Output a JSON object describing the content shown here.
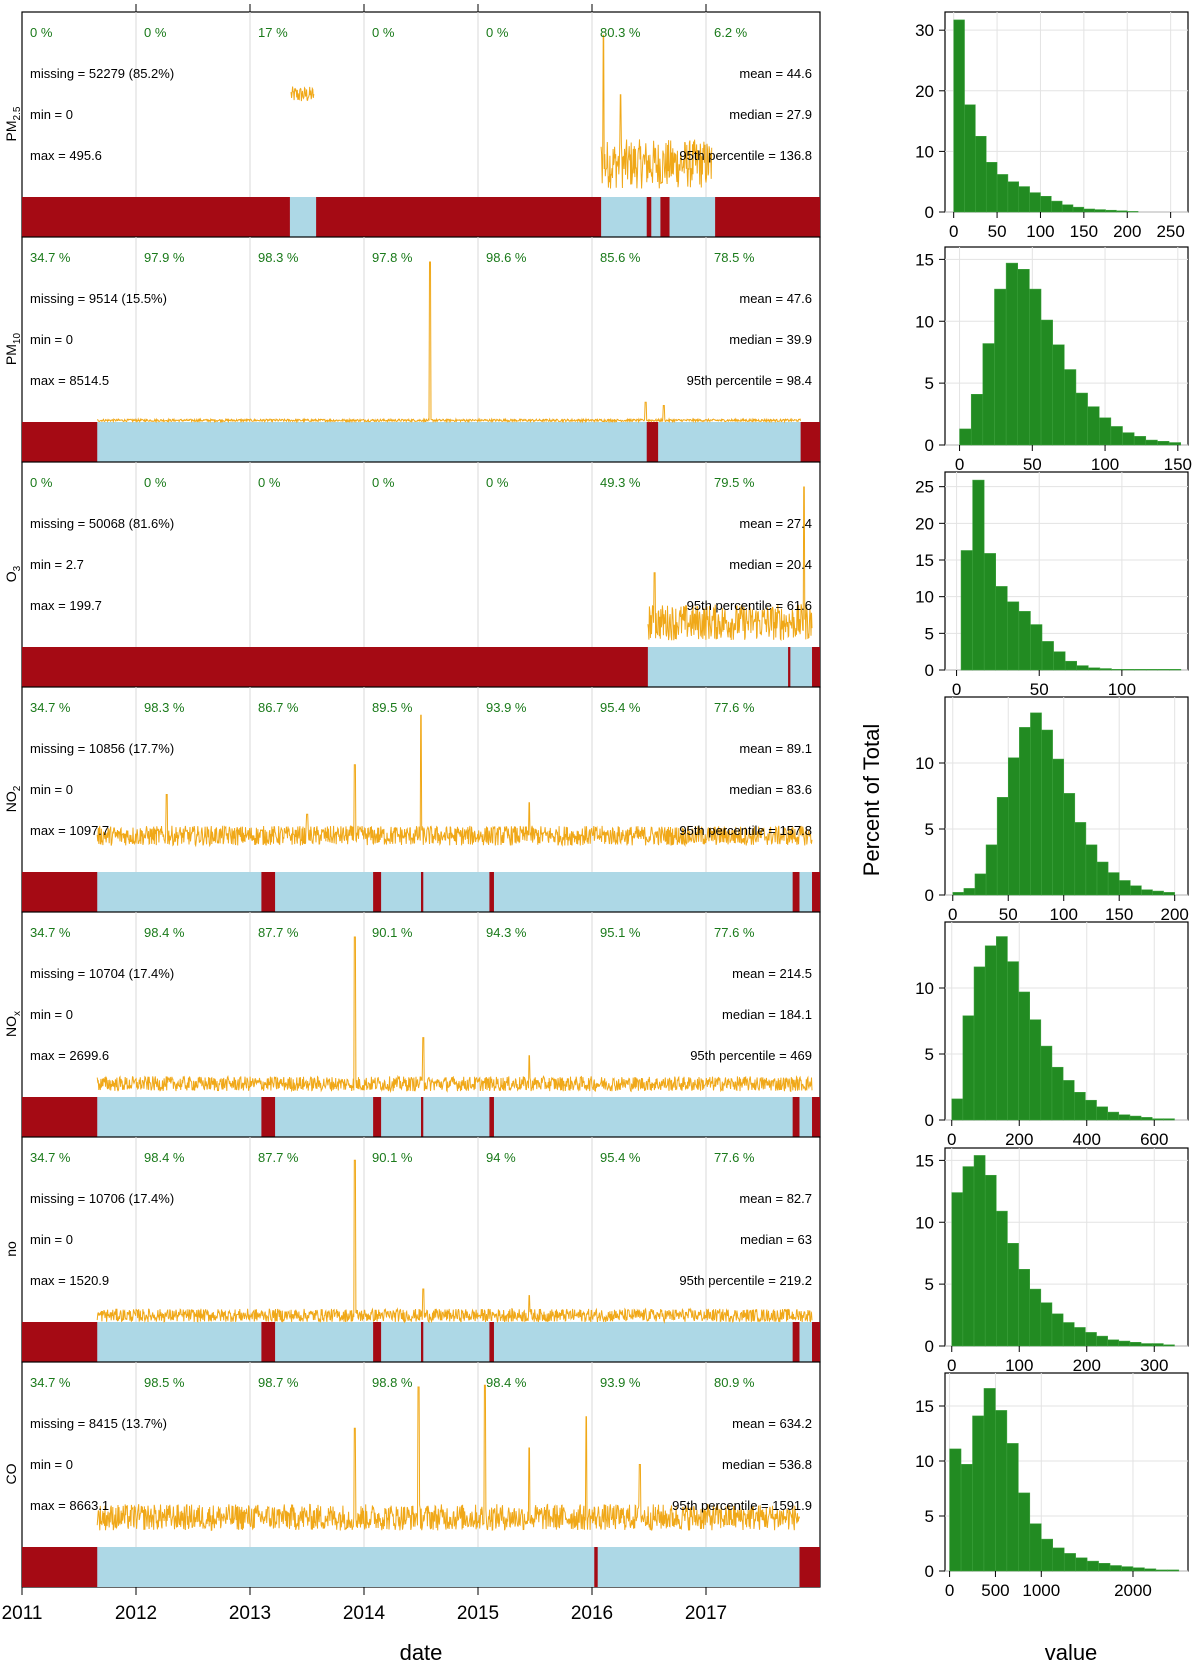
{
  "chart_data": {
    "type": "summary-plot",
    "ylabel_hist": "Percent of Total",
    "xlabel_time": "date",
    "xlabel_hist": "value",
    "x_ticks": [
      "2011",
      "2012",
      "2013",
      "2014",
      "2015",
      "2016",
      "2017"
    ],
    "colors": {
      "missing": "#a50a14",
      "present": "#add8e6",
      "line": "#f0a818",
      "hist": "#228b22",
      "percent_text": "#1a7a1a"
    },
    "panels": [
      {
        "id": "pm25",
        "label_main": "PM",
        "label_sub": "2.5",
        "year_pct": [
          "0 %",
          "0 %",
          "17 %",
          "0 %",
          "0 %",
          "80.3 %",
          "6.2 %"
        ],
        "missing": "missing = 52279 (85.2%)",
        "min": "min = 0",
        "max": "max = 495.6",
        "mean": "mean = 44.6",
        "median": "median = 27.9",
        "p95": "95th percentile = 136.8",
        "present_ranges": [
          [
            2013.35,
            2013.58
          ],
          [
            2016.08,
            2016.48
          ],
          [
            2016.52,
            2016.6
          ],
          [
            2016.68,
            2017.08
          ]
        ],
        "line_segments": [
          {
            "start": 2013.36,
            "end": 2013.56,
            "level": 0.62,
            "noise": 0.1,
            "spikes": []
          },
          {
            "start": 2016.08,
            "end": 2017.05,
            "level": 0.2,
            "noise": 0.3,
            "spikes": [
              [
                2016.1,
                0.98
              ],
              [
                2016.25,
                0.62
              ]
            ]
          }
        ],
        "hist": {
          "ticks": [
            0,
            50,
            100,
            150,
            200,
            250
          ],
          "xlim": [
            -10,
            270
          ],
          "yticks": [
            0,
            10,
            20,
            30
          ],
          "ylim": [
            0,
            33
          ],
          "bin_start": 0,
          "bin_width": 12.5,
          "values": [
            31.7,
            17.7,
            12.5,
            8.2,
            6.2,
            5.0,
            4.2,
            3.2,
            2.6,
            1.8,
            1.2,
            0.8,
            0.5,
            0.4,
            0.3,
            0.2,
            0.1
          ]
        }
      },
      {
        "id": "pm10",
        "label_main": "PM",
        "label_sub": "10",
        "year_pct": [
          "34.7 %",
          "97.9 %",
          "98.3 %",
          "97.8 %",
          "98.6 %",
          "85.6 %",
          "78.5 %"
        ],
        "missing": "missing = 9514 (15.5%)",
        "min": "min = 0",
        "max": "max = 8514.5",
        "mean": "mean = 47.6",
        "median": "median = 39.9",
        "p95": "95th percentile = 98.4",
        "present_ranges": [
          [
            2011.66,
            2016.48
          ],
          [
            2016.58,
            2017.83
          ]
        ],
        "line_segments": [
          {
            "start": 2011.66,
            "end": 2017.83,
            "level": 0.01,
            "noise": 0.015,
            "spikes": [
              [
                2014.58,
                0.97
              ],
              [
                2016.47,
                0.12
              ],
              [
                2016.63,
                0.1
              ]
            ]
          }
        ],
        "hist": {
          "ticks": [
            0,
            50,
            100,
            150
          ],
          "xlim": [
            -10,
            157
          ],
          "yticks": [
            0,
            5,
            10,
            15
          ],
          "ylim": [
            0,
            16
          ],
          "bin_start": 0,
          "bin_width": 8,
          "values": [
            1.3,
            4.1,
            8.2,
            12.6,
            14.7,
            14.2,
            12.6,
            10.1,
            8.1,
            6.1,
            4.2,
            3.1,
            2.2,
            1.5,
            1.0,
            0.7,
            0.4,
            0.3,
            0.2
          ]
        }
      },
      {
        "id": "o3",
        "label_main": "O",
        "label_sub": "3",
        "year_pct": [
          "0 %",
          "0 %",
          "0 %",
          "0 %",
          "0 %",
          "49.3 %",
          "79.5 %"
        ],
        "missing": "missing = 50068 (81.6%)",
        "min": "min = 2.7",
        "max": "max = 199.7",
        "mean": "mean = 27.4",
        "median": "median = 20.4",
        "p95": "95th percentile = 61.6",
        "present_ranges": [
          [
            2016.49,
            2017.72
          ],
          [
            2017.74,
            2017.93
          ]
        ],
        "line_segments": [
          {
            "start": 2016.49,
            "end": 2017.93,
            "level": 0.15,
            "noise": 0.22,
            "spikes": [
              [
                2017.86,
                0.97
              ],
              [
                2016.55,
                0.45
              ]
            ]
          }
        ],
        "hist": {
          "ticks": [
            0,
            50,
            100
          ],
          "xlim": [
            -7,
            140
          ],
          "yticks": [
            0,
            5,
            10,
            15,
            20,
            25
          ],
          "ylim": [
            0,
            27
          ],
          "bin_start": 2.7,
          "bin_width": 7,
          "values": [
            16.3,
            25.9,
            15.9,
            11.4,
            9.3,
            8.0,
            6.2,
            3.9,
            2.5,
            1.2,
            0.6,
            0.3,
            0.2,
            0.1,
            0.1,
            0.1,
            0.1,
            0.1,
            0.1
          ]
        }
      },
      {
        "id": "no2",
        "label_main": "NO",
        "label_sub": "2",
        "year_pct": [
          "34.7 %",
          "98.3 %",
          "86.7 %",
          "89.5 %",
          "93.9 %",
          "95.4 %",
          "77.6 %"
        ],
        "missing": "missing = 10856 (17.7%)",
        "min": "min = 0",
        "max": "max = 1097.7",
        "mean": "mean = 89.1",
        "median": "median = 83.6",
        "p95": "95th percentile = 157.8",
        "present_ranges": [
          [
            2011.66,
            2013.1
          ],
          [
            2013.22,
            2014.08
          ],
          [
            2014.15,
            2014.5
          ],
          [
            2014.52,
            2015.1
          ],
          [
            2015.14,
            2017.76
          ],
          [
            2017.82,
            2017.93
          ]
        ],
        "line_segments": [
          {
            "start": 2011.66,
            "end": 2017.93,
            "level": 0.22,
            "noise": 0.12,
            "spikes": [
              [
                2013.92,
                0.65
              ],
              [
                2012.27,
                0.47
              ],
              [
                2015.45,
                0.42
              ],
              [
                2013.5,
                0.35
              ],
              [
                2014.5,
                0.95
              ]
            ]
          }
        ],
        "hist": {
          "ticks": [
            0,
            50,
            100,
            150,
            200
          ],
          "xlim": [
            -7,
            212
          ],
          "yticks": [
            0,
            5,
            10
          ],
          "ylim": [
            0,
            15
          ],
          "bin_start": 0,
          "bin_width": 10,
          "values": [
            0.2,
            0.5,
            1.6,
            3.8,
            7.4,
            10.4,
            12.7,
            13.8,
            12.5,
            10.3,
            7.7,
            5.5,
            3.8,
            2.5,
            1.7,
            1.1,
            0.7,
            0.4,
            0.3,
            0.2
          ]
        }
      },
      {
        "id": "nox",
        "label_main": "NO",
        "label_sub": "x",
        "year_pct": [
          "34.7 %",
          "98.4 %",
          "87.7 %",
          "90.1 %",
          "94.3 %",
          "95.1 %",
          "77.6 %"
        ],
        "missing": "missing = 10704 (17.4%)",
        "min": "min = 0",
        "max": "max = 2699.6",
        "mean": "mean = 214.5",
        "median": "median = 184.1",
        "p95": "95th percentile = 469",
        "present_ranges": [
          [
            2011.66,
            2013.1
          ],
          [
            2013.22,
            2014.08
          ],
          [
            2014.15,
            2014.5
          ],
          [
            2014.52,
            2015.1
          ],
          [
            2015.14,
            2017.76
          ],
          [
            2017.82,
            2017.93
          ]
        ],
        "line_segments": [
          {
            "start": 2011.66,
            "end": 2017.93,
            "level": 0.08,
            "noise": 0.09,
            "spikes": [
              [
                2013.92,
                0.97
              ],
              [
                2014.52,
                0.36
              ],
              [
                2015.45,
                0.25
              ]
            ]
          }
        ],
        "hist": {
          "ticks": [
            0,
            200,
            400,
            600
          ],
          "xlim": [
            -20,
            700
          ],
          "yticks": [
            0,
            5,
            10
          ],
          "ylim": [
            0,
            15
          ],
          "bin_start": 0,
          "bin_width": 33,
          "values": [
            1.6,
            7.9,
            11.6,
            13.2,
            13.9,
            12.0,
            9.7,
            7.6,
            5.6,
            4.0,
            3.0,
            2.1,
            1.5,
            1.0,
            0.6,
            0.4,
            0.3,
            0.2,
            0.1,
            0.1
          ]
        }
      },
      {
        "id": "no",
        "label_main": "no",
        "label_sub": "",
        "year_pct": [
          "34.7 %",
          "98.4 %",
          "87.7 %",
          "90.1 %",
          "94 %",
          "95.4 %",
          "77.6 %"
        ],
        "missing": "missing = 10706 (17.4%)",
        "min": "min = 0",
        "max": "max = 1520.9",
        "mean": "mean = 82.7",
        "median": "median = 63",
        "p95": "95th percentile = 219.2",
        "present_ranges": [
          [
            2011.66,
            2013.1
          ],
          [
            2013.22,
            2014.08
          ],
          [
            2014.15,
            2014.5
          ],
          [
            2014.52,
            2015.1
          ],
          [
            2015.14,
            2017.76
          ],
          [
            2017.82,
            2017.93
          ]
        ],
        "line_segments": [
          {
            "start": 2011.66,
            "end": 2017.93,
            "level": 0.04,
            "noise": 0.08,
            "spikes": [
              [
                2013.92,
                0.98
              ],
              [
                2014.52,
                0.2
              ],
              [
                2015.45,
                0.16
              ]
            ]
          }
        ],
        "hist": {
          "ticks": [
            0,
            100,
            200,
            300
          ],
          "xlim": [
            -10,
            350
          ],
          "yticks": [
            0,
            5,
            10,
            15
          ],
          "ylim": [
            0,
            16
          ],
          "bin_start": 0,
          "bin_width": 16.5,
          "values": [
            12.4,
            14.5,
            15.4,
            13.8,
            10.9,
            8.3,
            6.2,
            4.6,
            3.5,
            2.6,
            1.9,
            1.5,
            1.1,
            0.8,
            0.5,
            0.4,
            0.3,
            0.2,
            0.2,
            0.1
          ]
        }
      },
      {
        "id": "co",
        "label_main": "CO",
        "label_sub": "",
        "year_pct": [
          "34.7 %",
          "98.5 %",
          "98.7 %",
          "98.8 %",
          "98.4 %",
          "93.9 %",
          "80.9 %"
        ],
        "missing": "missing = 8415 (13.7%)",
        "min": "min = 0",
        "max": "max = 8663.1",
        "mean": "mean = 634.2",
        "median": "median = 536.8",
        "p95": "95th percentile = 1591.9",
        "present_ranges": [
          [
            2011.66,
            2016.02
          ],
          [
            2016.05,
            2017.82
          ]
        ],
        "line_segments": [
          {
            "start": 2011.66,
            "end": 2017.82,
            "level": 0.18,
            "noise": 0.16,
            "spikes": [
              [
                2014.48,
                0.97
              ],
              [
                2015.06,
                0.98
              ],
              [
                2013.92,
                0.72
              ],
              [
                2015.95,
                0.79
              ],
              [
                2015.45,
                0.6
              ],
              [
                2016.42,
                0.5
              ]
            ]
          }
        ],
        "hist": {
          "ticks": [
            0,
            500,
            1000,
            2000
          ],
          "xlim": [
            -50,
            2600
          ],
          "yticks": [
            0,
            5,
            10,
            15
          ],
          "ylim": [
            0,
            18
          ],
          "bin_start": 0,
          "bin_width": 125,
          "values": [
            11.1,
            9.7,
            14.1,
            16.6,
            14.6,
            11.6,
            7.1,
            4.3,
            2.9,
            2.1,
            1.6,
            1.2,
            0.9,
            0.7,
            0.5,
            0.4,
            0.3,
            0.2,
            0.1,
            0.1
          ]
        }
      }
    ]
  }
}
